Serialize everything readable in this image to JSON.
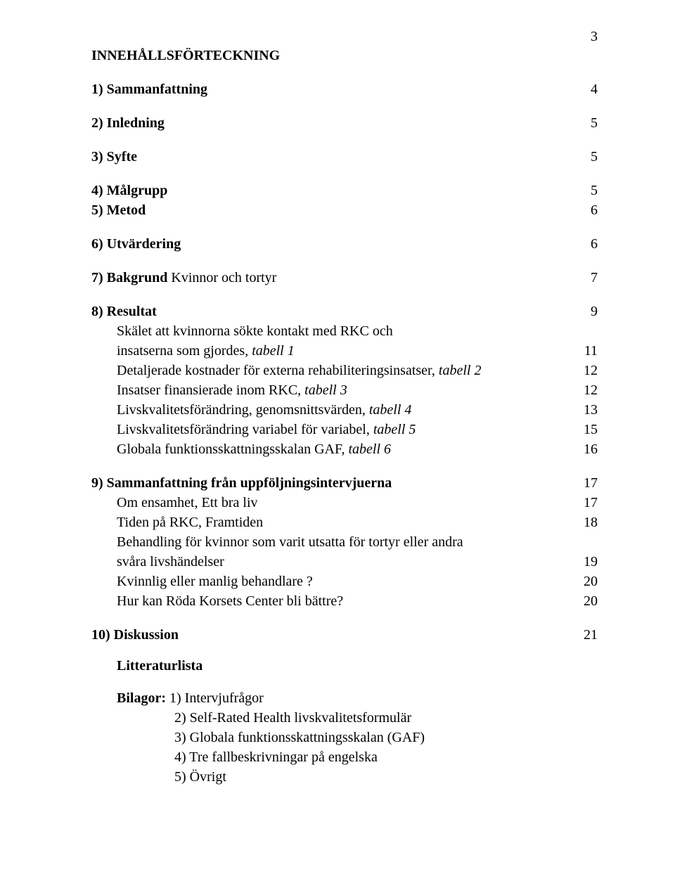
{
  "page_number": "3",
  "title": "INNEHÅLLSFÖRTECKNING",
  "rows": [
    {
      "label_bold": "1) Sammanfattning",
      "label_rest": "",
      "page": "4",
      "space_before": 0
    },
    {
      "label_bold": "2) Inledning",
      "label_rest": "",
      "page": "5",
      "space_before": 20
    },
    {
      "label_bold": "3) Syfte",
      "label_rest": "",
      "page": "5",
      "space_before": 20
    },
    {
      "label_bold": "4) Målgrupp",
      "label_rest": "",
      "page": "5",
      "space_before": 20
    },
    {
      "label_bold": "5) Metod",
      "label_rest": "",
      "page": "6",
      "space_before": 0
    },
    {
      "label_bold": "6) Utvärdering",
      "label_rest": "",
      "page": "6",
      "space_before": 20
    },
    {
      "label_bold": "7) Bakgrund",
      "label_rest": "   Kvinnor och tortyr",
      "page": "7",
      "space_before": 20
    },
    {
      "label_bold": "8) Resultat",
      "label_rest": "",
      "page": "9",
      "space_before": 20
    }
  ],
  "resultat_sub": [
    {
      "pre": "Skälet att kvinnorna sökte kontakt med RKC och",
      "italic": "",
      "page": ""
    },
    {
      "pre": "insatserna som gjordes, ",
      "italic": "tabell 1",
      "page": "11"
    },
    {
      "pre": "Detaljerade kostnader för externa rehabiliteringsinsatser, ",
      "italic": "tabell 2",
      "page": "12"
    },
    {
      "pre": "Insatser finansierade inom RKC, ",
      "italic": "tabell 3",
      "page": "12"
    },
    {
      "pre": "Livskvalitetsförändring, genomsnittsvärden, ",
      "italic": "tabell 4",
      "page": "13"
    },
    {
      "pre": "Livskvalitetsförändring variabel för variabel,  ",
      "italic": "tabell 5",
      "page": "15"
    },
    {
      "pre": "Globala funktionsskattningsskalan GAF,   ",
      "italic": "tabell 6",
      "page": "16"
    }
  ],
  "section9": {
    "label_bold": "9) Sammanfattning från uppföljningsintervjuerna",
    "page": "17"
  },
  "section9_sub": [
    {
      "text": "Om ensamhet,   Ett bra liv",
      "page": "17"
    },
    {
      "text": "Tiden på RKC,   Framtiden",
      "page": "18"
    }
  ],
  "section9_wrap": {
    "line1": "Behandling för kvinnor som varit utsatta för tortyr eller andra",
    "line2": "svåra livshändelser",
    "page": "19"
  },
  "section9_tail": [
    {
      "text": "Kvinnlig eller manlig behandlare ?",
      "page": "20"
    },
    {
      "text": "Hur kan Röda Korsets Center bli bättre?",
      "page": "20"
    }
  ],
  "section10": {
    "label_bold": "10) Diskussion",
    "page": "21"
  },
  "litteratur": "Litteraturlista",
  "bilagor_label": "Bilagor:",
  "bilagor": [
    "1) Intervjufrågor",
    "2) Self-Rated Health livskvalitetsformulär",
    "3) Globala funktionsskattningsskalan  (GAF)",
    "4) Tre fallbeskrivningar på engelska",
    "5) Övrigt"
  ]
}
